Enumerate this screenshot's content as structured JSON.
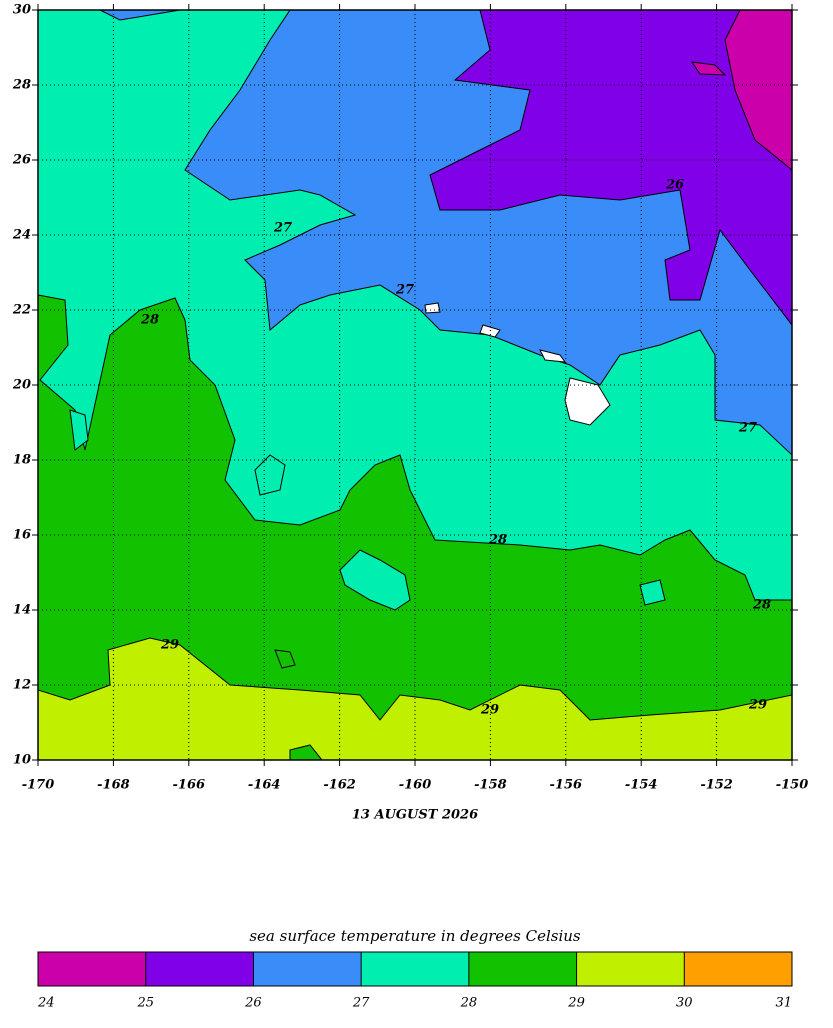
{
  "map": {
    "xlim": [
      -170,
      -150
    ],
    "ylim": [
      10,
      30
    ],
    "xticks": [
      -170,
      -168,
      -166,
      -164,
      -162,
      -160,
      -158,
      -156,
      -154,
      -152,
      -150
    ],
    "yticks": [
      10,
      12,
      14,
      16,
      18,
      20,
      22,
      24,
      26,
      28,
      30
    ],
    "date": "13 AUGUST 2026",
    "contour_labels": [
      "27",
      "27",
      "28",
      "29",
      "28",
      "29",
      "27",
      "28",
      "29",
      "26"
    ]
  },
  "colorbar": {
    "title": "sea surface temperature in degrees Celsius",
    "ticks": [
      24,
      25,
      26,
      27,
      28,
      29,
      30,
      31
    ],
    "colors": [
      "#cc00aa",
      "#8000e8",
      "#3a8cf8",
      "#00eeb0",
      "#12c200",
      "#c0f000",
      "#ffa000"
    ]
  }
}
